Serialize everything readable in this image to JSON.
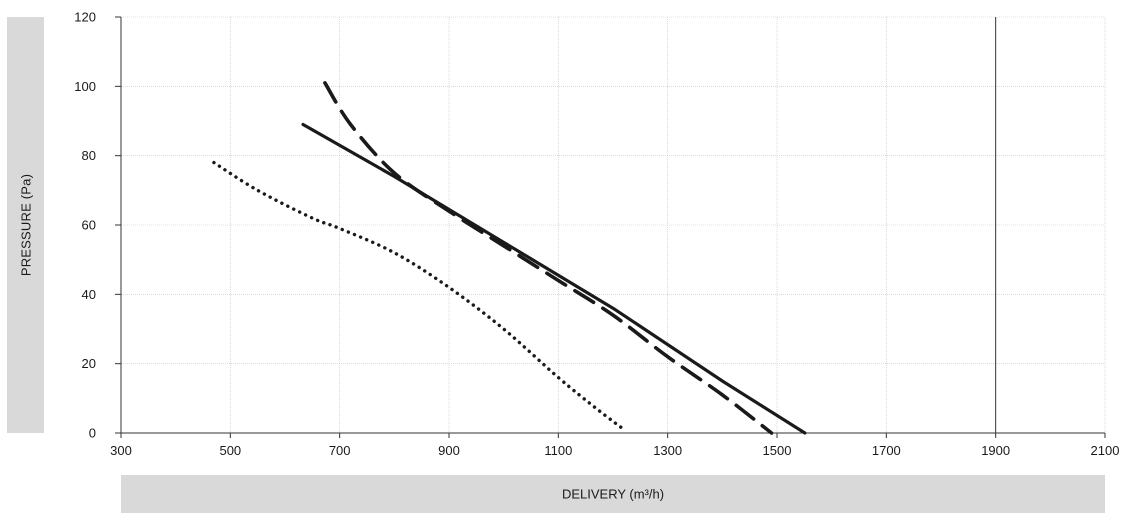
{
  "chart_data": {
    "type": "line",
    "title": "",
    "xlabel": "DELIVERY (m³/h)",
    "ylabel": "PRESSURE (Pa)",
    "xlim": [
      300,
      2100
    ],
    "ylim": [
      0,
      120
    ],
    "xticks": [
      300,
      500,
      700,
      900,
      1100,
      1300,
      1500,
      1700,
      1900,
      2100
    ],
    "yticks": [
      0,
      20,
      40,
      60,
      80,
      100,
      120
    ],
    "grid": true,
    "highlight_gridline_x": 1900,
    "series": [
      {
        "style": "dotted",
        "color": "#1a1a1a",
        "x": [
          470,
          550,
          650,
          700,
          800,
          900,
          1000,
          1100,
          1170,
          1220
        ],
        "y": [
          78,
          70,
          62,
          59,
          52,
          42,
          30,
          16,
          7,
          1
        ]
      },
      {
        "style": "solid",
        "color": "#1a1a1a",
        "x": [
          633,
          800,
          1000,
          1200,
          1400,
          1551
        ],
        "y": [
          89,
          74,
          55,
          36,
          15,
          0
        ]
      },
      {
        "style": "dashed",
        "color": "#1a1a1a",
        "x": [
          673,
          720,
          800,
          900,
          1000,
          1100,
          1200,
          1300,
          1400,
          1490
        ],
        "y": [
          101,
          89,
          75,
          64,
          54,
          44,
          34,
          22,
          11,
          0
        ]
      }
    ]
  }
}
